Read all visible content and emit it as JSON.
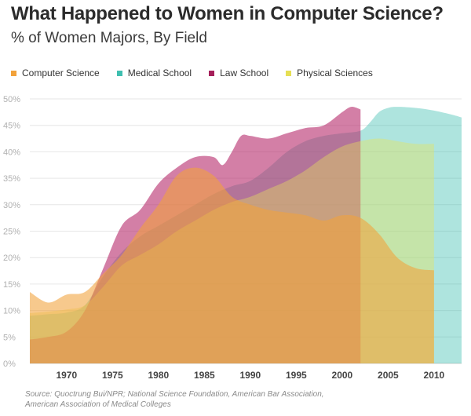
{
  "title": "What Happened to Women in Computer Science?",
  "subtitle": "% of Women Majors, By Field",
  "source_lines": [
    "Source: Quoctrung Bui/NPR; National Science Foundation, American Bar Association,",
    "American Association of Medical Colleges"
  ],
  "chart_data": {
    "type": "area",
    "title": "What Happened to Women in Computer Science?",
    "subtitle": "% of Women Majors, By Field",
    "xlabel": "",
    "ylabel": "",
    "xlim": [
      1966,
      2013
    ],
    "ylim": [
      0,
      50
    ],
    "x_ticks": [
      1970,
      1975,
      1980,
      1985,
      1990,
      1995,
      2000,
      2005,
      2010
    ],
    "x_tick_labels": [
      "1970",
      "1975",
      "1980",
      "1985",
      "1990",
      "1995",
      "2000",
      "2005",
      "2010"
    ],
    "y_ticks": [
      0,
      5,
      10,
      15,
      20,
      25,
      30,
      35,
      40,
      45,
      50
    ],
    "y_tick_labels": [
      "0%",
      "5%",
      "10%",
      "15%",
      "20%",
      "25%",
      "30%",
      "35%",
      "40%",
      "45%",
      "50%"
    ],
    "grid": "horizontal",
    "legend_position": "top-left",
    "series": [
      {
        "name": "Medical School",
        "color": "#3fbfb0",
        "opacity": 0.42,
        "x": [
          1966,
          1968,
          1970,
          1972,
          1974,
          1976,
          1978,
          1980,
          1982,
          1984,
          1986,
          1988,
          1990,
          1992,
          1994,
          1996,
          1998,
          2000,
          2002,
          2003,
          2004,
          2005,
          2006,
          2008,
          2010,
          2012,
          2013
        ],
        "y": [
          9.0,
          9.3,
          9.6,
          11.0,
          16.5,
          21.0,
          24.0,
          26.0,
          28.0,
          30.0,
          32.0,
          33.5,
          34.5,
          37.0,
          40.0,
          42.0,
          43.0,
          43.5,
          44.0,
          45.5,
          47.5,
          48.3,
          48.5,
          48.3,
          47.8,
          47.0,
          46.5
        ]
      },
      {
        "name": "Law School",
        "color": "#b5296b",
        "opacity": 0.6,
        "x": [
          1966,
          1968,
          1970,
          1972,
          1974,
          1976,
          1978,
          1980,
          1982,
          1984,
          1986,
          1987,
          1988,
          1989,
          1990,
          1992,
          1994,
          1996,
          1998,
          2000,
          2001,
          2002
        ],
        "y": [
          4.5,
          5.0,
          6.0,
          10.0,
          18.0,
          26.0,
          29.0,
          34.0,
          37.0,
          39.0,
          39.0,
          37.5,
          40.0,
          43.0,
          43.0,
          42.5,
          43.5,
          44.5,
          45.0,
          47.5,
          48.5,
          48.0
        ]
      },
      {
        "name": "Physical Sciences",
        "color": "#e9e45a",
        "opacity": 0.4,
        "x": [
          1966,
          1968,
          1970,
          1972,
          1974,
          1976,
          1978,
          1980,
          1982,
          1984,
          1986,
          1988,
          1990,
          1992,
          1994,
          1996,
          1998,
          2000,
          2002,
          2004,
          2006,
          2008,
          2010
        ],
        "y": [
          9.5,
          9.8,
          10.2,
          11.0,
          14.5,
          18.5,
          20.5,
          22.5,
          25.0,
          27.0,
          29.0,
          30.5,
          31.5,
          33.0,
          34.5,
          36.5,
          39.0,
          41.0,
          42.0,
          42.5,
          42.0,
          41.5,
          41.5
        ]
      },
      {
        "name": "Computer Science",
        "color": "#f2a23b",
        "opacity": 0.58,
        "x": [
          1966,
          1968,
          1970,
          1972,
          1974,
          1976,
          1978,
          1980,
          1982,
          1984,
          1986,
          1988,
          1990,
          1992,
          1994,
          1996,
          1998,
          2000,
          2002,
          2004,
          2006,
          2008,
          2010
        ],
        "y": [
          13.5,
          11.5,
          13.0,
          13.5,
          17.0,
          20.5,
          25.5,
          30.0,
          35.5,
          37.0,
          35.5,
          31.5,
          30.0,
          29.0,
          28.5,
          28.0,
          27.0,
          28.0,
          27.5,
          24.5,
          20.0,
          18.0,
          17.6
        ]
      }
    ],
    "legend": [
      {
        "name": "Computer Science",
        "color": "#f2a23b"
      },
      {
        "name": "Medical School",
        "color": "#3fbfb0"
      },
      {
        "name": "Law School",
        "color": "#a51f5a"
      },
      {
        "name": "Physical Sciences",
        "color": "#e6df54"
      }
    ]
  }
}
